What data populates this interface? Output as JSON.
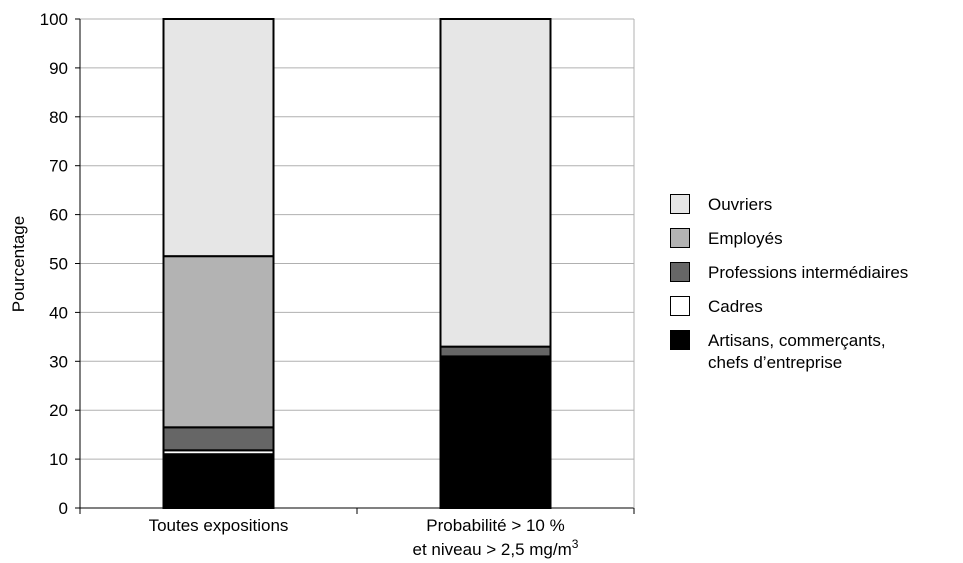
{
  "chart_data": {
    "type": "stacked-bar",
    "ylabel": "Pourcentage",
    "ylim": [
      0,
      100
    ],
    "yticks": [
      "0",
      "10",
      "20",
      "30",
      "40",
      "50",
      "60",
      "70",
      "80",
      "90",
      "100"
    ],
    "categories": [
      {
        "line1": "Toutes expositions",
        "line2": "",
        "sup": ""
      },
      {
        "line1": "Probabilité > 10 %",
        "line2": "et niveau > 2,5 mg/m",
        "sup": "3"
      }
    ],
    "series": [
      {
        "name": "Artisans, commerçants,\nchefs d’entreprise",
        "color": "#000000",
        "values": [
          11,
          31
        ]
      },
      {
        "name": "Cadres",
        "color": "#ffffff",
        "values": [
          0.8,
          0
        ]
      },
      {
        "name": "Professions intermédiaires",
        "color": "#666666",
        "values": [
          4.7,
          2
        ]
      },
      {
        "name": "Employés",
        "color": "#b3b3b3",
        "values": [
          35,
          0
        ]
      },
      {
        "name": "Ouvriers",
        "color": "#e6e6e6",
        "values": [
          48.5,
          67
        ]
      }
    ],
    "legend_order": [
      4,
      3,
      2,
      1,
      0
    ],
    "grid": true,
    "legend": "right"
  }
}
